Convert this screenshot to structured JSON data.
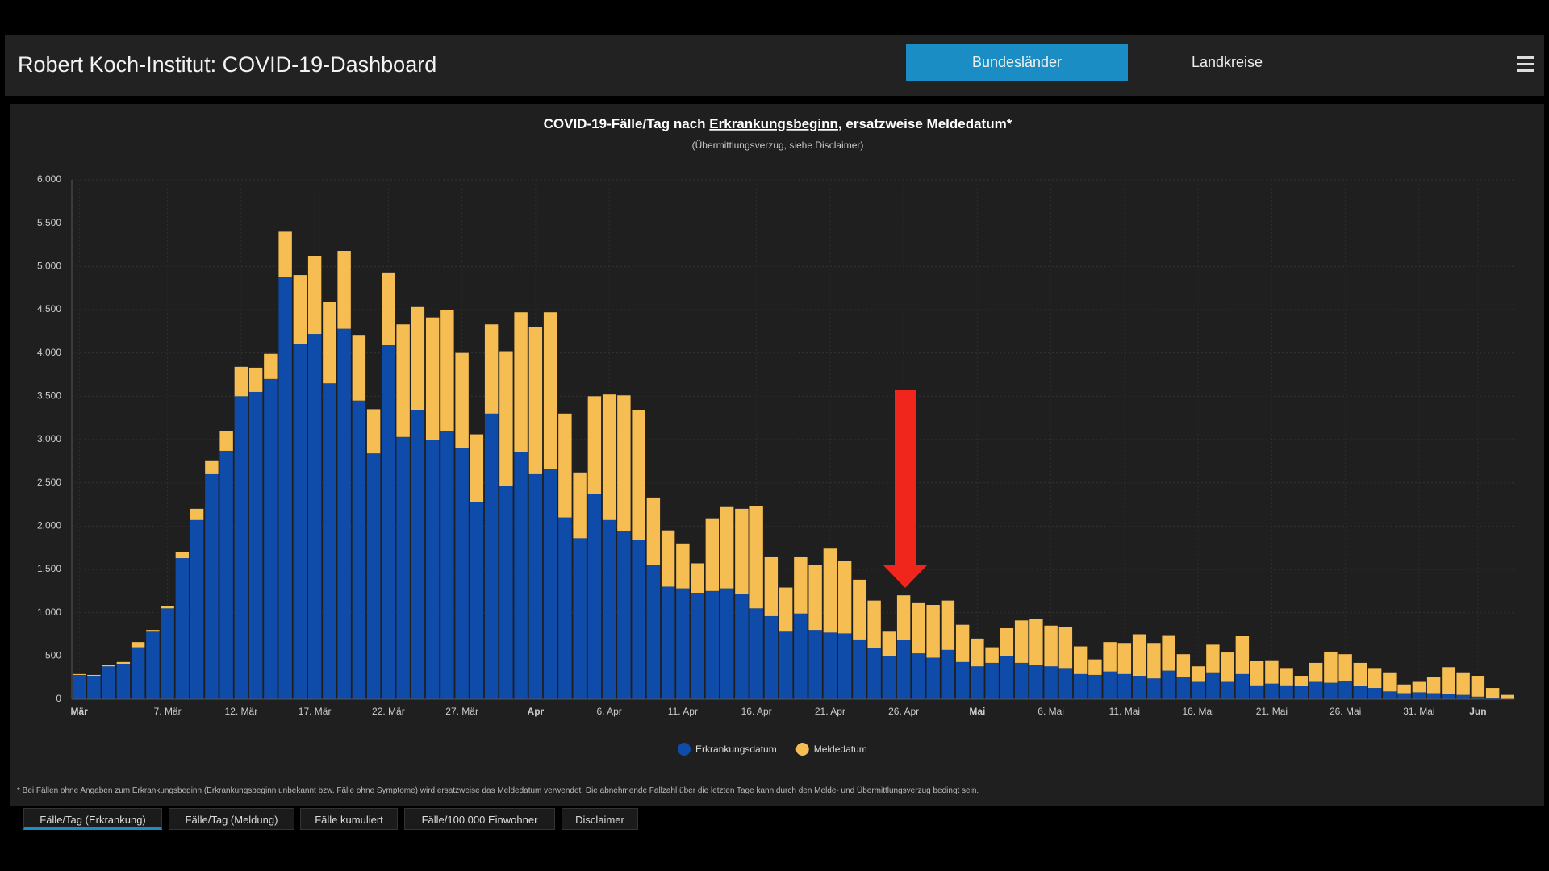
{
  "header": {
    "title": "Robert Koch-Institut: COVID-19-Dashboard",
    "buttons": [
      "Bundesländer",
      "Landkreise"
    ]
  },
  "chart_data": {
    "type": "stacked_bar",
    "title": [
      "COVID-19-Fälle/Tag nach ",
      "Erkrankungsbeginn",
      ", ersatzweise Meldedatum*"
    ],
    "subtitle": "(Übermittlungsverzug, siehe Disclaimer)",
    "categories": [
      "Mär",
      null,
      null,
      null,
      null,
      null,
      "7. Mär",
      null,
      null,
      null,
      null,
      "12. Mär",
      null,
      null,
      null,
      null,
      "17. Mär",
      null,
      null,
      null,
      null,
      "22. Mär",
      null,
      null,
      null,
      null,
      "27. Mär",
      null,
      null,
      null,
      null,
      "Apr",
      null,
      null,
      null,
      null,
      "6. Apr",
      null,
      null,
      null,
      null,
      "11. Apr",
      null,
      null,
      null,
      null,
      "16. Apr",
      null,
      null,
      null,
      null,
      "21. Apr",
      null,
      null,
      null,
      null,
      "26. Apr",
      null,
      null,
      null,
      null,
      "Mai",
      null,
      null,
      null,
      null,
      "6. Mai",
      null,
      null,
      null,
      null,
      "11. Mai",
      null,
      null,
      null,
      null,
      "16. Mai",
      null,
      null,
      null,
      null,
      "21. Mai",
      null,
      null,
      null,
      null,
      "26. Mai",
      null,
      null,
      null,
      null,
      "31. Mai",
      null,
      null,
      null,
      "Jun",
      null,
      null
    ],
    "series": [
      {
        "name": "Erkrankungsdatum",
        "color": "#0f4ba9",
        "values": [
          280,
          270,
          380,
          410,
          600,
          780,
          1050,
          1630,
          2070,
          2600,
          2870,
          3500,
          3550,
          3700,
          4880,
          4100,
          4220,
          3650,
          4280,
          3450,
          2840,
          4090,
          3030,
          3340,
          3000,
          3100,
          2900,
          2280,
          3300,
          2460,
          2860,
          2600,
          2660,
          2100,
          1860,
          2370,
          2070,
          1940,
          1840,
          1550,
          1300,
          1280,
          1230,
          1250,
          1280,
          1220,
          1050,
          960,
          780,
          990,
          800,
          770,
          760,
          690,
          590,
          500,
          680,
          530,
          480,
          570,
          430,
          380,
          420,
          500,
          420,
          400,
          380,
          360,
          290,
          280,
          320,
          290,
          270,
          240,
          330,
          260,
          200,
          310,
          200,
          290,
          160,
          180,
          160,
          150,
          200,
          190,
          210,
          150,
          130,
          90,
          70,
          80,
          70,
          60,
          50,
          30,
          10,
          0
        ]
      },
      {
        "name": "Meldedatum",
        "color": "#f6bd52",
        "values": [
          10,
          10,
          20,
          20,
          60,
          20,
          30,
          70,
          130,
          160,
          230,
          340,
          280,
          290,
          520,
          800,
          900,
          940,
          900,
          750,
          510,
          840,
          1300,
          1190,
          1410,
          1400,
          1100,
          780,
          1030,
          1560,
          1610,
          1700,
          1810,
          1200,
          760,
          1130,
          1450,
          1570,
          1500,
          780,
          650,
          520,
          340,
          840,
          940,
          980,
          1180,
          680,
          510,
          650,
          750,
          970,
          840,
          690,
          550,
          280,
          520,
          580,
          610,
          570,
          430,
          320,
          180,
          320,
          490,
          530,
          470,
          470,
          320,
          180,
          340,
          360,
          480,
          410,
          410,
          260,
          180,
          320,
          340,
          440,
          280,
          270,
          200,
          120,
          220,
          360,
          310,
          270,
          230,
          220,
          100,
          120,
          190,
          310,
          260,
          240,
          120,
          50
        ]
      }
    ],
    "ylim": [
      0,
      6000
    ],
    "yticks": [
      0,
      500,
      {
        "value": 1000,
        "label": "1.000"
      },
      {
        "value": 1500,
        "label": "1.500"
      },
      {
        "value": 2000,
        "label": "2.000"
      },
      {
        "value": 2500,
        "label": "2.500"
      },
      {
        "value": 3000,
        "label": "3.000"
      },
      {
        "value": 3500,
        "label": "3.500"
      },
      {
        "value": 4000,
        "label": "4.000"
      },
      {
        "value": 4500,
        "label": "4.500"
      },
      {
        "value": 5000,
        "label": "5.000"
      },
      {
        "value": 5500,
        "label": "5.500"
      },
      {
        "value": 6000,
        "label": "6.000"
      }
    ],
    "grid": true,
    "legend": "bottom"
  },
  "footnote": "* Bei Fällen ohne Angaben zum Erkrankungsbeginn (Erkrankungsbeginn unbekannt bzw. Fälle ohne Symptome) wird ersatzweise das Meldedatum verwendet. Die abnehmende Fallzahl über die letzten Tage kann durch den Melde- und Übermittlungsverzug bedingt sein.",
  "tabs": [
    "Fälle/Tag (Erkrankung)",
    "Fälle/Tag (Meldung)",
    "Fälle kumuliert",
    "Fälle/100.000 Einwohner",
    "Disclaimer"
  ]
}
